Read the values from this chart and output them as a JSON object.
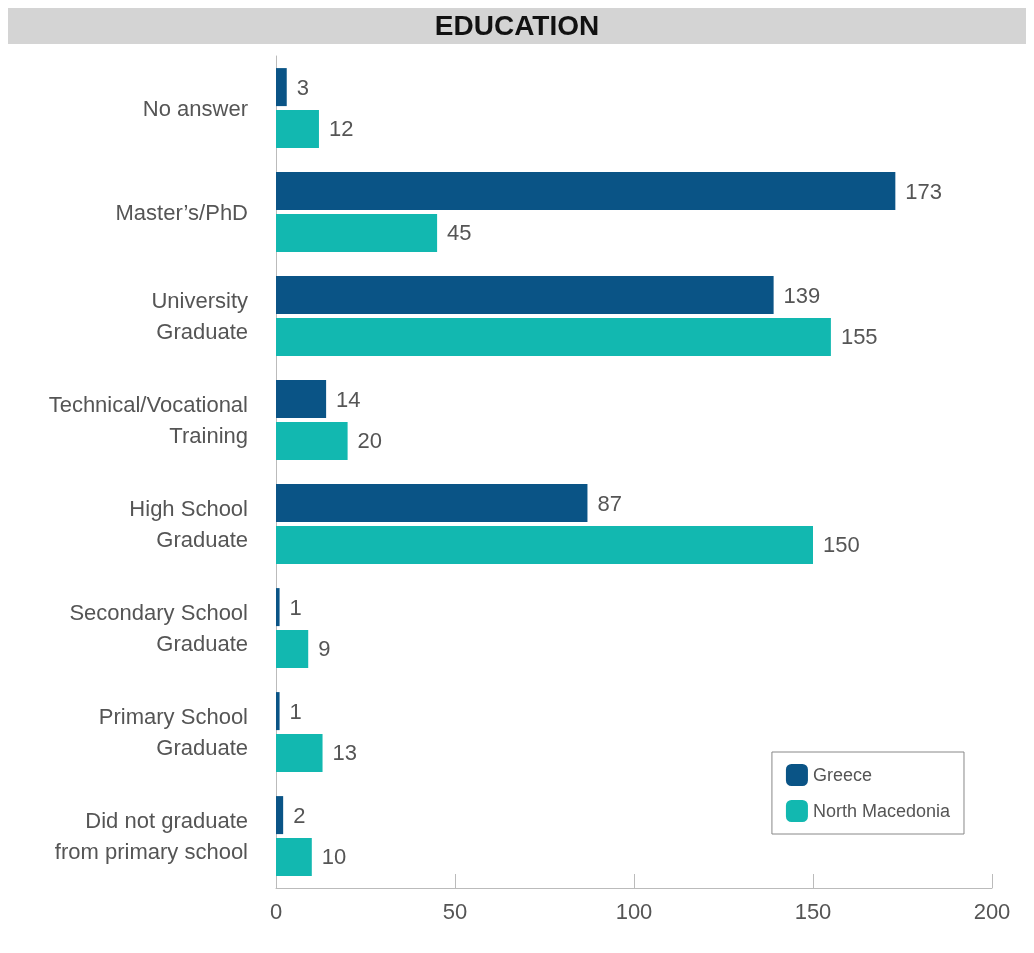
{
  "chart_data": {
    "type": "bar",
    "orientation": "horizontal",
    "title": "EDUCATION",
    "categories": [
      "No answer",
      "Master’s/PhD",
      "University\nGraduate",
      "Technical/Vocational\nTraining",
      "High School\nGraduate",
      "Secondary School\nGraduate",
      "Primary School\nGraduate",
      "Did not graduate\nfrom primary school"
    ],
    "series": [
      {
        "name": "Greece",
        "color": "#0a5486",
        "values": [
          3,
          173,
          139,
          14,
          87,
          1,
          1,
          2
        ]
      },
      {
        "name": "North Macedonia",
        "color": "#12b8b0",
        "values": [
          12,
          45,
          155,
          20,
          150,
          9,
          13,
          10
        ]
      }
    ],
    "xlim": [
      0,
      200
    ],
    "xticks": [
      0,
      50,
      100,
      150,
      200
    ],
    "grid": false,
    "legend": "bottom right",
    "data_labels": true
  }
}
